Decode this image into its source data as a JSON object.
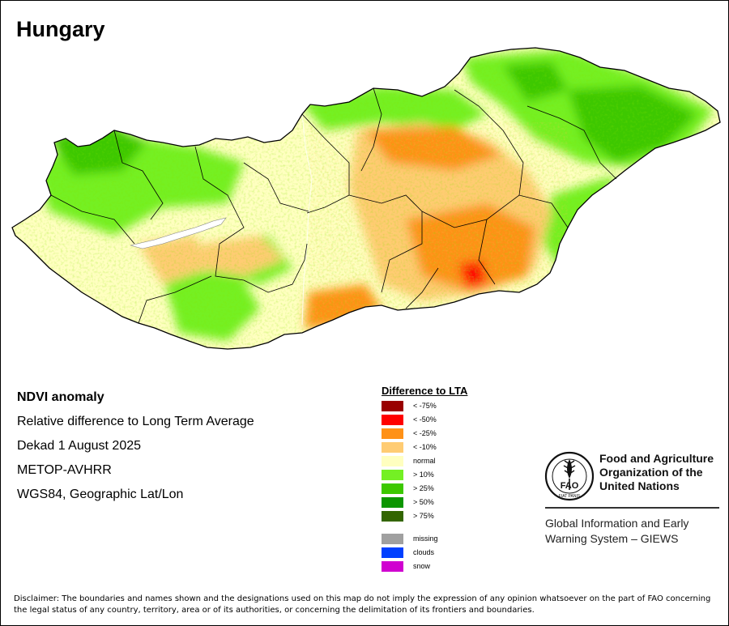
{
  "map": {
    "title": "Hungary",
    "country": "Hungary",
    "colors": {
      "lt75": "#990000",
      "lt50": "#ff0000",
      "lt25": "#ff9117",
      "lt10": "#ffcc73",
      "normal": "#ffffc0",
      "gt10": "#74f024",
      "gt25": "#3cc800",
      "gt50": "#0c9600",
      "gt75": "#336600",
      "water": "#ffffff",
      "boundary": "#000000"
    }
  },
  "info": {
    "product": "NDVI anomaly",
    "description": "Relative difference to Long Term Average",
    "period": "Dekad 1 August 2025",
    "sensor": "METOP-AVHRR",
    "projection": "WGS84, Geographic Lat/Lon"
  },
  "legend": {
    "title": "Difference to LTA",
    "items": [
      {
        "label": "< -75%",
        "color": "#990000"
      },
      {
        "label": "< -50%",
        "color": "#ff0000"
      },
      {
        "label": "< -25%",
        "color": "#ff9117"
      },
      {
        "label": "< -10%",
        "color": "#ffcc73"
      },
      {
        "label": "normal",
        "color": "#ffffc0"
      },
      {
        "label": "> 10%",
        "color": "#74f024"
      },
      {
        "label": "> 25%",
        "color": "#3cc800"
      },
      {
        "label": "> 50%",
        "color": "#0c9600"
      },
      {
        "label": "> 75%",
        "color": "#336600"
      },
      {
        "label": "missing",
        "color": "#a0a0a0"
      },
      {
        "label": "clouds",
        "color": "#0040ff"
      },
      {
        "label": "snow",
        "color": "#d000d0"
      }
    ]
  },
  "logo": {
    "letters": "FAO",
    "motto": "FIAT PANIS",
    "org_name_line1": "Food and Agriculture",
    "org_name_line2": "Organization of the",
    "org_name_line3": "United Nations",
    "system_line1": "Global Information and Early",
    "system_line2": "Warning System – GIEWS"
  },
  "disclaimer": "Disclaimer: The boundaries and names shown and the designations used on this map do not imply the expression of any opinion whatsoever on the part of FAO concerning the legal status of any country, territory, area or of its authorities, or concerning the delimitation of its frontiers and boundaries."
}
